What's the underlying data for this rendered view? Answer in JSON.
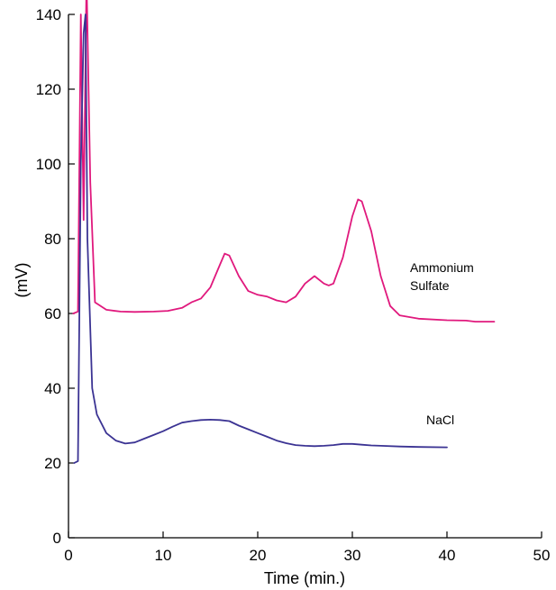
{
  "chart_data": {
    "type": "line",
    "title": "",
    "xlabel": "Time (min.)",
    "ylabel": "(mV)",
    "xlim": [
      0,
      50
    ],
    "ylim": [
      0,
      140
    ],
    "x_ticks": [
      "0",
      "10",
      "20",
      "30",
      "40",
      "50"
    ],
    "y_ticks": [
      "0",
      "20",
      "40",
      "60",
      "80",
      "100",
      "120",
      "140"
    ],
    "grid": false,
    "series": [
      {
        "name_lines": [
          "Ammonium",
          "Sulfate"
        ],
        "color": "#e0197d",
        "points": [
          [
            0.5,
            60
          ],
          [
            1.0,
            60.5
          ],
          [
            1.3,
            140
          ],
          [
            1.6,
            85
          ],
          [
            1.9,
            150
          ],
          [
            2.3,
            95
          ],
          [
            2.8,
            63
          ],
          [
            4,
            61
          ],
          [
            5.5,
            60.5
          ],
          [
            7,
            60.4
          ],
          [
            9,
            60.5
          ],
          [
            10.5,
            60.7
          ],
          [
            12,
            61.5
          ],
          [
            13,
            63
          ],
          [
            14,
            64
          ],
          [
            15,
            67
          ],
          [
            16,
            73
          ],
          [
            16.5,
            76
          ],
          [
            17,
            75.5
          ],
          [
            18,
            70
          ],
          [
            19,
            66
          ],
          [
            20,
            65
          ],
          [
            21,
            64.5
          ],
          [
            22,
            63.5
          ],
          [
            23,
            63
          ],
          [
            24,
            64.5
          ],
          [
            25,
            68
          ],
          [
            26,
            70
          ],
          [
            27,
            68
          ],
          [
            27.5,
            67.5
          ],
          [
            28,
            68
          ],
          [
            29,
            75
          ],
          [
            30,
            86
          ],
          [
            30.6,
            90.5
          ],
          [
            31,
            90
          ],
          [
            32,
            82
          ],
          [
            33,
            70
          ],
          [
            34,
            62
          ],
          [
            35,
            59.5
          ],
          [
            37,
            58.6
          ],
          [
            40,
            58.2
          ],
          [
            42,
            58.1
          ],
          [
            43,
            57.8
          ],
          [
            45,
            57.8
          ]
        ]
      },
      {
        "name_lines": [
          "NaCl"
        ],
        "color": "#3b3393",
        "points": [
          [
            0.6,
            20
          ],
          [
            1.0,
            20.5
          ],
          [
            1.3,
            100
          ],
          [
            1.6,
            135
          ],
          [
            1.8,
            140
          ],
          [
            2.0,
            80
          ],
          [
            2.5,
            40
          ],
          [
            3,
            33
          ],
          [
            4,
            28
          ],
          [
            5,
            26
          ],
          [
            6,
            25.2
          ],
          [
            7,
            25.5
          ],
          [
            8,
            26.5
          ],
          [
            9,
            27.5
          ],
          [
            10,
            28.5
          ],
          [
            11,
            29.7
          ],
          [
            12,
            30.8
          ],
          [
            13,
            31.2
          ],
          [
            14,
            31.5
          ],
          [
            15,
            31.6
          ],
          [
            16,
            31.5
          ],
          [
            17,
            31.2
          ],
          [
            18,
            30
          ],
          [
            19,
            29
          ],
          [
            20,
            28
          ],
          [
            21,
            27
          ],
          [
            22,
            26
          ],
          [
            23,
            25.3
          ],
          [
            24,
            24.8
          ],
          [
            25,
            24.6
          ],
          [
            26,
            24.5
          ],
          [
            27,
            24.6
          ],
          [
            28,
            24.8
          ],
          [
            29,
            25.1
          ],
          [
            30,
            25.1
          ],
          [
            31,
            24.9
          ],
          [
            32,
            24.7
          ],
          [
            33,
            24.6
          ],
          [
            35,
            24.4
          ],
          [
            37,
            24.3
          ],
          [
            40,
            24.2
          ]
        ]
      }
    ]
  }
}
